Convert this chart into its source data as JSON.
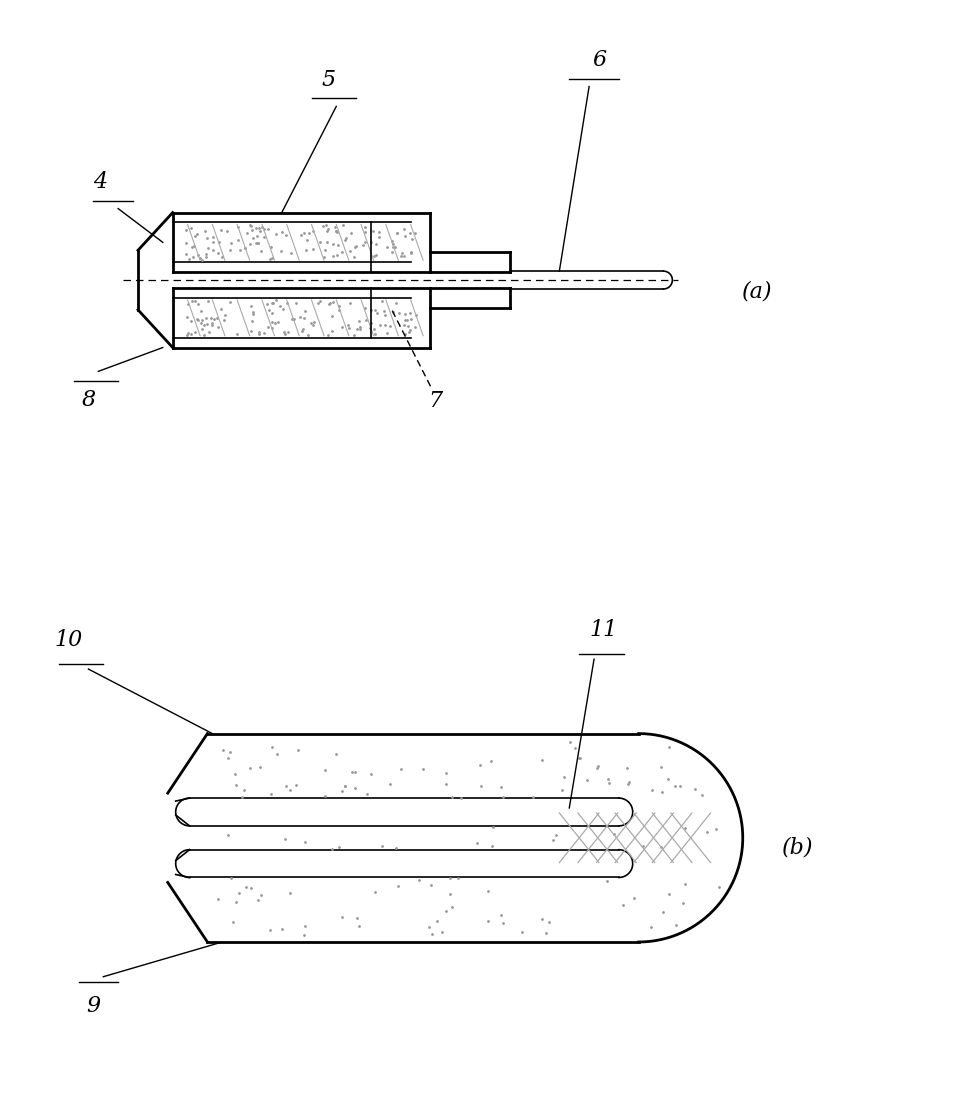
{
  "background_color": "#ffffff",
  "fig_a_label": "(a)",
  "fig_b_label": "(b)",
  "lw_outer": 2.0,
  "lw_inner": 1.2,
  "lw_leader": 1.0,
  "color": "#000000",
  "stipple_color": "#999999",
  "hatch_color": "#aaaaaa"
}
